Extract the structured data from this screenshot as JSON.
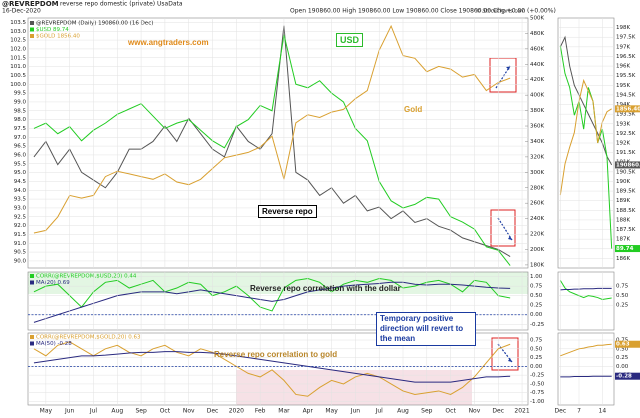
{
  "chart_data": [
    {
      "type": "line",
      "header": {
        "symbol": "@REVREPDOM",
        "description": "reverse repo domestic (private) UsaData",
        "date": "16-Dec-2020",
        "ohlc": "Open 190860.00  High 190860.00  Low 190860.00  Close 190860.00  Chg +0.00 (+0.00%)",
        "copyright": "© StockCharts.com"
      },
      "annotations": [
        "www.angtraders.com",
        "USD",
        "Gold",
        "Reverse repo"
      ],
      "grid": true,
      "ylim": [
        89.6,
        103.75
      ],
      "yticks": [
        103.5,
        {
          "value": 103,
          "label": "103.0"
        },
        102.5,
        {
          "value": 102,
          "label": "102.0"
        },
        101.5,
        {
          "value": 101,
          "label": "101.0"
        },
        100.5,
        {
          "value": 100,
          "label": "100.0"
        },
        99.5,
        {
          "value": 99,
          "label": "99.0"
        },
        98.5,
        {
          "value": 98,
          "label": "98.0"
        },
        97.5,
        {
          "value": 97,
          "label": "97.0"
        },
        96.5,
        {
          "value": 96,
          "label": "96.0"
        },
        95.5,
        {
          "value": 95,
          "label": "95.0"
        },
        94.5,
        {
          "value": 94,
          "label": "94.0"
        },
        93.5,
        {
          "value": 93,
          "label": "93.0"
        },
        92.5,
        {
          "value": 92,
          "label": "92.0"
        },
        91.5,
        {
          "value": 91,
          "label": "91.0"
        },
        90.5,
        {
          "value": 90,
          "label": "90.0"
        }
      ],
      "y2lim": [
        176000,
        500000
      ],
      "y2ticks": [
        {
          "value": 500000,
          "label": "500K"
        },
        {
          "value": 480000,
          "label": "480K"
        },
        {
          "value": 460000,
          "label": "460K"
        },
        {
          "value": 440000,
          "label": "440K"
        },
        {
          "value": 420000,
          "label": "420K"
        },
        {
          "value": 400000,
          "label": "400K"
        },
        {
          "value": 380000,
          "label": "380K"
        },
        {
          "value": 360000,
          "label": "360K"
        },
        {
          "value": 340000,
          "label": "340K"
        },
        {
          "value": 320000,
          "label": "320K"
        },
        {
          "value": 300000,
          "label": "300K"
        },
        {
          "value": 280000,
          "label": "280K"
        },
        {
          "value": 260000,
          "label": "260K"
        },
        {
          "value": 240000,
          "label": "240K"
        },
        {
          "value": 220000,
          "label": "220K"
        },
        {
          "value": 200000,
          "label": "200K"
        },
        {
          "value": 180000,
          "label": "180K"
        }
      ],
      "y3lim": [
        1150,
        2080
      ],
      "series": [
        {
          "name": "@REVREPDOM (Daily) 190860.00 (16 Dec)",
          "color": "#555555",
          "axis": "y2",
          "values": [
            320000,
            340000,
            310000,
            330000,
            300000,
            290000,
            280000,
            300000,
            330000,
            330000,
            340000,
            360000,
            340000,
            370000,
            350000,
            330000,
            320000,
            360000,
            340000,
            330000,
            350000,
            490000,
            300000,
            290000,
            270000,
            280000,
            260000,
            270000,
            250000,
            255000,
            240000,
            250000,
            235000,
            240000,
            230000,
            225000,
            215000,
            210000,
            205000,
            200000,
            190860,
            null
          ]
        },
        {
          "name": "$USD 89.74",
          "color": "#22cc22",
          "values": [
            97.5,
            97.8,
            97.2,
            97.6,
            96.8,
            97.4,
            97.8,
            98.3,
            98.6,
            98.9,
            98.2,
            97.5,
            97.8,
            98.0,
            97.4,
            96.8,
            96.4,
            97.6,
            98.0,
            98.8,
            98.5,
            102.8,
            100.0,
            99.8,
            100.2,
            99.5,
            99.0,
            97.5,
            96.8,
            94.5,
            93.4,
            93.0,
            93.2,
            93.6,
            93.5,
            92.5,
            92.2,
            91.8,
            90.8,
            90.6,
            89.74,
            null
          ]
        },
        {
          "name": "$GOLD 1856.40",
          "color": "#d9a030",
          "axis": "y3",
          "values": [
            1280,
            1290,
            1340,
            1420,
            1410,
            1420,
            1490,
            1510,
            1500,
            1490,
            1480,
            1500,
            1470,
            1460,
            1480,
            1520,
            1560,
            1570,
            1580,
            1600,
            1640,
            1480,
            1690,
            1720,
            1710,
            1730,
            1740,
            1780,
            1810,
            1960,
            2050,
            1940,
            1930,
            1880,
            1900,
            1890,
            1860,
            1870,
            1810,
            1840,
            1856.4,
            null
          ]
        }
      ]
    },
    {
      "type": "line",
      "annotations": [
        "Reverse repo correlation with the dollar"
      ],
      "grid": true,
      "ylim": [
        -0.4,
        1.12
      ],
      "yticks": [
        {
          "value": 1,
          "label": "1.00"
        },
        0.75,
        {
          "value": 0.5,
          "label": "0.50"
        },
        0.25,
        {
          "value": 0,
          "label": "0.00"
        },
        -0.25
      ],
      "series": [
        {
          "name": "CORR(@REVREPDOM,$USD,20) 0.44",
          "color": "#22cc22",
          "values": [
            0.6,
            0.75,
            0.8,
            0.5,
            0.2,
            0.6,
            0.85,
            0.9,
            0.7,
            0.8,
            0.9,
            0.6,
            0.7,
            0.85,
            0.8,
            0.5,
            0.6,
            0.75,
            0.5,
            0.2,
            0.1,
            0.7,
            0.9,
            0.95,
            0.85,
            0.6,
            0.8,
            0.9,
            0.85,
            0.95,
            0.9,
            0.7,
            0.75,
            0.85,
            0.9,
            0.8,
            0.6,
            0.9,
            0.85,
            0.5,
            0.44,
            null
          ]
        },
        {
          "name": "MA(20) 0.69",
          "color": "#2a2a80",
          "values": [
            -0.2,
            -0.1,
            0.0,
            0.1,
            0.2,
            0.3,
            0.4,
            0.5,
            0.55,
            0.6,
            0.6,
            0.6,
            0.55,
            0.6,
            0.65,
            0.6,
            0.55,
            0.5,
            0.45,
            0.4,
            0.35,
            0.4,
            0.5,
            0.6,
            0.65,
            0.7,
            0.75,
            0.78,
            0.8,
            0.82,
            0.85,
            0.85,
            0.8,
            0.78,
            0.8,
            0.8,
            0.78,
            0.75,
            0.72,
            0.7,
            0.69,
            null
          ]
        }
      ]
    },
    {
      "type": "line",
      "annotations": [
        "Reverse repo correlation to gold",
        "Temporary positive direction will revert to the mean"
      ],
      "grid": true,
      "categories": [
        null,
        "May",
        null,
        "Jun",
        null,
        "Jul",
        null,
        "Aug",
        null,
        "Sep",
        null,
        "Oct",
        null,
        "Nov",
        null,
        "Dec",
        null,
        "2020",
        null,
        "Feb",
        null,
        "Mar",
        null,
        "Apr",
        null,
        "May",
        null,
        "Jun",
        null,
        "Jul",
        null,
        "Aug",
        null,
        "Sep",
        null,
        "Oct",
        null,
        "Nov",
        null,
        "Dec",
        null,
        "2021"
      ],
      "ylim": [
        -1.1,
        0.95
      ],
      "yticks": [
        0.75,
        {
          "value": 0.5,
          "label": "0.50"
        },
        0.25,
        {
          "value": 0,
          "label": "0.00"
        },
        -0.25,
        {
          "value": -0.5,
          "label": "-0.50"
        },
        -0.75,
        {
          "value": -1,
          "label": "-1.00"
        }
      ],
      "series": [
        {
          "name": "CORR(@REVREPDOM,$GOLD,20) 0.63",
          "color": "#d9a030",
          "values": [
            0.5,
            0.3,
            0.6,
            0.7,
            0.5,
            0.3,
            0.5,
            0.6,
            0.4,
            0.3,
            0.5,
            0.6,
            0.4,
            0.3,
            0.5,
            0.4,
            0.2,
            0.0,
            -0.2,
            -0.3,
            -0.1,
            -0.4,
            -0.8,
            -0.85,
            -0.6,
            -0.4,
            -0.5,
            -0.3,
            -0.2,
            -0.3,
            -0.5,
            -0.7,
            -0.8,
            -0.75,
            -0.7,
            -0.8,
            -0.6,
            -0.3,
            0.1,
            0.5,
            0.63,
            null
          ]
        },
        {
          "name": "MA(50) -0.28",
          "color": "#2a2a80",
          "values": [
            0.1,
            0.15,
            0.2,
            0.25,
            0.3,
            0.3,
            0.32,
            0.35,
            0.38,
            0.4,
            0.4,
            0.42,
            0.42,
            0.4,
            0.4,
            0.38,
            0.35,
            0.3,
            0.25,
            0.2,
            0.15,
            0.1,
            0.05,
            0.0,
            -0.05,
            -0.1,
            -0.15,
            -0.2,
            -0.25,
            -0.3,
            -0.35,
            -0.4,
            -0.45,
            -0.45,
            -0.45,
            -0.45,
            -0.4,
            -0.35,
            -0.3,
            -0.3,
            -0.28,
            null
          ]
        }
      ]
    },
    {
      "type": "line",
      "grid": true,
      "ylim": [
        185500,
        198500
      ],
      "yticks": [
        {
          "value": 198000,
          "label": "198K"
        },
        {
          "value": 197500,
          "label": "197.5K"
        },
        {
          "value": 197000,
          "label": "197K"
        },
        {
          "value": 196500,
          "label": "196.5K"
        },
        {
          "value": 196000,
          "label": "196K"
        },
        {
          "value": 195500,
          "label": "195.5K"
        },
        {
          "value": 195000,
          "label": "195K"
        },
        {
          "value": 194500,
          "label": "194.5K"
        },
        {
          "value": 194000,
          "label": "194K"
        },
        {
          "value": 193500,
          "label": "193.5K"
        },
        {
          "value": 193000,
          "label": "193K"
        },
        {
          "value": 192500,
          "label": "192.5K"
        },
        {
          "value": 192000,
          "label": "192K"
        },
        {
          "value": 191500,
          "label": "191.5K"
        },
        {
          "value": 191000,
          "label": "191K"
        },
        {
          "value": 190500,
          "label": "190.5K"
        },
        {
          "value": 190000,
          "label": "190K"
        },
        {
          "value": 189500,
          "label": "189.5K"
        },
        {
          "value": 189000,
          "label": "189K"
        },
        {
          "value": 188500,
          "label": "188.5K"
        },
        {
          "value": 188000,
          "label": "188K"
        },
        {
          "value": 187500,
          "label": "187.5K"
        },
        {
          "value": 187000,
          "label": "187K"
        },
        {
          "value": 186500,
          "label": "186.5K"
        },
        {
          "value": 186000,
          "label": "186K"
        }
      ],
      "y2lim": [
        89.6,
        91.4
      ],
      "y3lim": [
        1780,
        1900
      ],
      "series": [
        {
          "color": "#555555",
          "values": [
            197000,
            197500,
            196000,
            195000,
            194500,
            194000,
            193500,
            193000,
            192500,
            192000,
            191300,
            190860
          ],
          "value_labels": [
            null,
            null,
            null,
            null,
            null,
            null,
            null,
            null,
            null,
            null,
            null,
            "190860.00"
          ]
        },
        {
          "color": "#22cc22",
          "axis": "y2",
          "values": [
            91.2,
            91.0,
            90.9,
            90.7,
            90.8,
            90.6,
            90.9,
            90.8,
            90.5,
            90.6,
            90.4,
            89.74
          ],
          "value_labels": [
            null,
            null,
            null,
            null,
            null,
            null,
            null,
            null,
            null,
            null,
            null,
            "89.74"
          ]
        },
        {
          "color": "#d9a030",
          "axis": "y3",
          "values": [
            1815,
            1830,
            1838,
            1845,
            1860,
            1870,
            1865,
            1860,
            1840,
            1850,
            1855,
            1856.4
          ],
          "value_labels": [
            null,
            null,
            null,
            null,
            null,
            null,
            null,
            null,
            null,
            null,
            null,
            "1856.40"
          ]
        }
      ]
    },
    {
      "type": "line",
      "grid": true,
      "ylim": [
        -0.4,
        1.12
      ],
      "yticks": [
        0.75,
        {
          "value": 0.5,
          "label": "0.50"
        },
        0.25
      ],
      "series": [
        {
          "color": "#22cc22",
          "values": [
            0.9,
            0.7,
            0.6,
            0.55,
            0.5,
            0.45,
            0.5,
            0.48,
            0.45,
            0.4,
            0.42,
            0.44
          ]
        },
        {
          "color": "#2a2a80",
          "values": [
            0.65,
            0.66,
            0.66,
            0.67,
            0.67,
            0.68,
            0.68,
            0.68,
            0.69,
            0.69,
            0.69,
            0.69
          ]
        }
      ]
    },
    {
      "type": "line",
      "grid": true,
      "categories": [
        "Dec",
        null,
        null,
        null,
        "7",
        null,
        null,
        null,
        null,
        "14",
        null,
        null
      ],
      "ylim": [
        -1.1,
        0.95
      ],
      "yticks": [
        0.75,
        {
          "value": 0.5,
          "label": "0.50"
        },
        0.25,
        {
          "value": 0,
          "label": "0.00"
        },
        -0.25
      ],
      "series": [
        {
          "color": "#d9a030",
          "values": [
            0.3,
            0.35,
            0.4,
            0.45,
            0.5,
            0.52,
            0.55,
            0.57,
            0.6,
            0.6,
            0.62,
            0.63
          ],
          "value_labels": [
            null,
            null,
            null,
            null,
            null,
            null,
            null,
            null,
            null,
            null,
            null,
            "0.63"
          ]
        },
        {
          "color": "#2a2a80",
          "values": [
            -0.3,
            -0.3,
            -0.3,
            -0.29,
            -0.29,
            -0.29,
            -0.29,
            -0.28,
            -0.28,
            -0.28,
            -0.28,
            -0.28
          ],
          "value_labels": [
            null,
            null,
            null,
            null,
            null,
            null,
            null,
            null,
            null,
            null,
            null,
            "-0.28"
          ]
        }
      ]
    }
  ]
}
